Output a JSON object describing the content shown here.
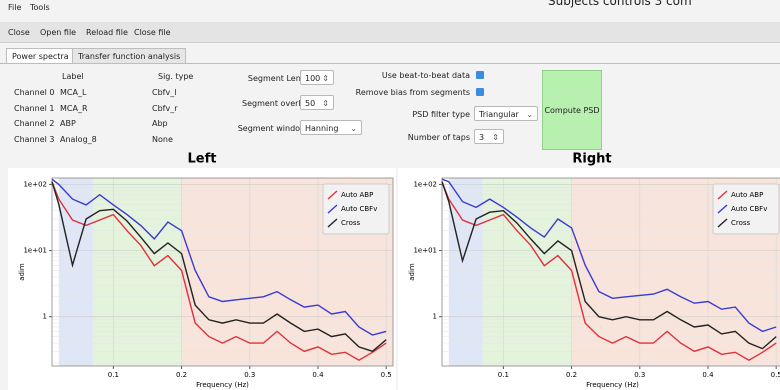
{
  "menu": [
    "File",
    "Tools"
  ],
  "window_title": "Subjects controls 3 com",
  "toolbar": [
    "Close",
    "Open file",
    "Reload file",
    "Close file"
  ],
  "tabs": [
    "Power spectra",
    "Transfer function analysis"
  ],
  "channels": {
    "header": [
      "Label",
      "Sig. type"
    ],
    "rows": [
      [
        "Channel 0",
        "MCA_L",
        "Cbfv_l"
      ],
      [
        "Channel 1",
        "MCA_R",
        "Cbfv_r"
      ],
      [
        "Channel 2",
        "ABP",
        "Abp"
      ],
      [
        "Channel 3",
        "Analog_8",
        "None"
      ]
    ]
  },
  "form": {
    "segment_length": {
      "label": "Segment Length (s)",
      "value": "100"
    },
    "segment_overlap": {
      "label": "Segment overlap (%)",
      "value": "50"
    },
    "window_type": {
      "label": "Segment window type",
      "value": "Hanning"
    },
    "beat_to_beat": {
      "label": "Use beat-to-beat data",
      "checked": true
    },
    "remove_bias": {
      "label": "Remove bias from segments",
      "checked": true
    },
    "psd_filter_type": {
      "label": "PSD filter type",
      "value": "Triangular"
    },
    "number_of_taps": {
      "label": "Number of taps",
      "value": "3"
    },
    "compute_button": "Compute PSD"
  },
  "chart_data": [
    {
      "type": "line",
      "title": "Left",
      "x_label": "Frequency (Hz)",
      "y_label": "adim",
      "log_y": true,
      "grid": true,
      "legend": "top-right",
      "xlim": [
        0.01,
        0.51
      ],
      "ylim": [
        0.18,
        125
      ],
      "xticks": [
        0.1,
        0.2,
        0.3,
        0.4,
        0.5
      ],
      "yticks": [
        {
          "value": 100,
          "label": "1e+02"
        },
        {
          "value": 10,
          "label": "1e+01"
        },
        1
      ],
      "bands": [
        {
          "xlim": [
            0.02,
            0.07
          ],
          "color": "#dfe7f6"
        },
        {
          "xlim": [
            0.07,
            0.2
          ],
          "color": "#e3f3dc"
        },
        {
          "xlim": [
            0.2,
            0.51
          ],
          "color": "#f9e4dc"
        }
      ],
      "x": [
        0.01,
        0.02,
        0.04,
        0.06,
        0.08,
        0.1,
        0.12,
        0.14,
        0.16,
        0.18,
        0.2,
        0.22,
        0.24,
        0.26,
        0.28,
        0.3,
        0.32,
        0.34,
        0.36,
        0.38,
        0.4,
        0.42,
        0.44,
        0.46,
        0.48,
        0.5
      ],
      "series": [
        {
          "name": "Auto ABP",
          "color": "#e0303a",
          "values": [
            110,
            60,
            29,
            24,
            29,
            35,
            20,
            12,
            5.9,
            8.4,
            5,
            0.8,
            0.5,
            0.4,
            0.5,
            0.4,
            0.4,
            0.6,
            0.4,
            0.3,
            0.35,
            0.27,
            0.29,
            0.22,
            0.29,
            0.4
          ]
        },
        {
          "name": "Auto CBFv",
          "color": "#3a3ad0",
          "values": [
            120,
            100,
            60,
            49,
            70,
            49,
            35,
            24,
            15,
            27,
            20,
            5,
            2,
            1.7,
            1.8,
            1.9,
            2,
            2.4,
            1.8,
            1.4,
            1.5,
            1.1,
            1.2,
            0.7,
            0.53,
            0.6
          ]
        },
        {
          "name": "Cross",
          "color": "#222222",
          "values": [
            110,
            50,
            6,
            30,
            40,
            42,
            28,
            16,
            9,
            13,
            9,
            1.5,
            0.9,
            0.8,
            0.9,
            0.8,
            0.8,
            1.1,
            0.8,
            0.6,
            0.65,
            0.5,
            0.55,
            0.35,
            0.3,
            0.45
          ]
        }
      ]
    },
    {
      "type": "line",
      "title": "Right",
      "x_label": "Frequency (Hz)",
      "y_label": "adim",
      "log_y": true,
      "grid": true,
      "legend": "top-right",
      "xlim": [
        0.01,
        0.51
      ],
      "ylim": [
        0.18,
        125
      ],
      "xticks": [
        0.1,
        0.2,
        0.3,
        0.4,
        0.5
      ],
      "yticks": [
        {
          "value": 100,
          "label": "1e+02"
        },
        {
          "value": 10,
          "label": "1e+01"
        },
        1
      ],
      "bands": [
        {
          "xlim": [
            0.02,
            0.07
          ],
          "color": "#dfe7f6"
        },
        {
          "xlim": [
            0.07,
            0.2
          ],
          "color": "#e3f3dc"
        },
        {
          "xlim": [
            0.2,
            0.51
          ],
          "color": "#f9e4dc"
        }
      ],
      "x": [
        0.01,
        0.02,
        0.04,
        0.06,
        0.08,
        0.1,
        0.12,
        0.14,
        0.16,
        0.18,
        0.2,
        0.22,
        0.24,
        0.26,
        0.28,
        0.3,
        0.32,
        0.34,
        0.36,
        0.38,
        0.4,
        0.42,
        0.44,
        0.46,
        0.48,
        0.5
      ],
      "series": [
        {
          "name": "Auto ABP",
          "color": "#e0303a",
          "values": [
            110,
            60,
            29,
            24,
            29,
            35,
            20,
            12,
            5.9,
            8.4,
            5,
            0.8,
            0.5,
            0.4,
            0.5,
            0.4,
            0.4,
            0.6,
            0.4,
            0.3,
            0.35,
            0.27,
            0.29,
            0.22,
            0.29,
            0.4
          ]
        },
        {
          "name": "Auto CBFv",
          "color": "#3a3ad0",
          "values": [
            120,
            110,
            55,
            45,
            60,
            45,
            32,
            22,
            16,
            30,
            22,
            6,
            2.4,
            1.9,
            2,
            2.1,
            2.2,
            2.6,
            2,
            1.6,
            1.7,
            1.3,
            1.4,
            0.8,
            0.6,
            0.7
          ]
        },
        {
          "name": "Cross",
          "color": "#222222",
          "values": [
            110,
            55,
            7,
            30,
            38,
            40,
            26,
            15,
            9,
            14,
            10,
            1.7,
            1,
            0.9,
            1,
            0.9,
            0.9,
            1.2,
            0.9,
            0.7,
            0.75,
            0.55,
            0.6,
            0.4,
            0.33,
            0.5
          ]
        }
      ]
    }
  ]
}
